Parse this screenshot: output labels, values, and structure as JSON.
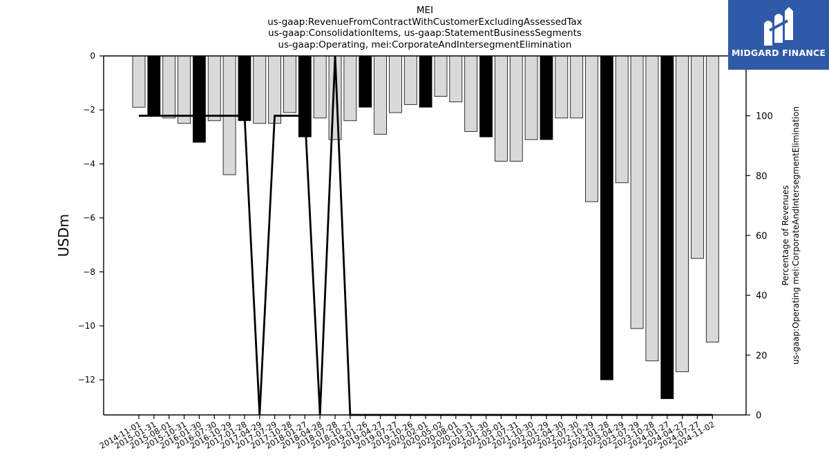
{
  "chart_data": {
    "type": "bar",
    "title_lines": [
      "MEI",
      "us-gaap:RevenueFromContractWithCustomerExcludingAssessedTax",
      "us-gaap:ConsolidationItems, us-gaap:StatementBusinessSegments",
      "us-gaap:Operating, mei:CorporateAndIntersegmentElimination"
    ],
    "ylabel": "USDm",
    "y2label_lines": [
      "Percentage of Revenues",
      "us-gaap:Operating mei:CorporateAndIntersegmentElimination"
    ],
    "ylim": [
      -13.3,
      0
    ],
    "y2lim": [
      0,
      120
    ],
    "yticks": [
      0,
      -2,
      -4,
      -6,
      -8,
      -10,
      -12
    ],
    "y2ticks": [
      0,
      20,
      40,
      60,
      80,
      100
    ],
    "categories": [
      "2014-11-01",
      "2015-01-31",
      "2015-08-01",
      "2015-10-31",
      "2016-01-30",
      "2016-07-30",
      "2016-10-29",
      "2017-01-28",
      "2017-04-29",
      "2017-07-29",
      "2017-10-28",
      "2018-01-27",
      "2018-04-28",
      "2018-07-28",
      "2018-10-27",
      "2019-01-26",
      "2019-04-27",
      "2019-07-27",
      "2019-10-26",
      "2020-02-01",
      "2020-05-02",
      "2020-08-01",
      "2020-10-31",
      "2021-01-30",
      "2021-05-01",
      "2021-07-31",
      "2021-10-30",
      "2022-01-29",
      "2022-04-30",
      "2022-07-30",
      "2022-10-29",
      "2023-01-28",
      "2023-04-29",
      "2023-07-29",
      "2023-10-28",
      "2024-01-27",
      "2024-04-27",
      "2024-07-27",
      "2024-11-02"
    ],
    "series": [
      {
        "values": [
          -1.9,
          -2.2,
          -2.3,
          -2.5,
          -3.2,
          -2.4,
          -4.4,
          -2.4,
          -2.5,
          -2.5,
          -2.1,
          -3.0,
          -2.3,
          -3.1,
          -2.4,
          -1.9,
          -2.9,
          -2.1,
          -1.8,
          -1.9,
          -1.5,
          -1.7,
          -2.8,
          -3.0,
          -3.9,
          -3.9,
          -3.1,
          -3.1,
          -2.3,
          -2.3,
          -5.4,
          -12.0,
          -4.7,
          -10.1,
          -11.3,
          -12.7,
          -11.7,
          -7.5,
          -10.6
        ],
        "highlight": [
          false,
          true,
          false,
          false,
          true,
          false,
          false,
          true,
          false,
          false,
          false,
          true,
          false,
          false,
          false,
          true,
          false,
          false,
          false,
          true,
          false,
          false,
          false,
          true,
          false,
          false,
          false,
          true,
          false,
          false,
          false,
          true,
          false,
          false,
          false,
          true,
          false,
          false,
          false
        ]
      },
      {
        "values": [
          100,
          100,
          100,
          100,
          100,
          100,
          100,
          100,
          0,
          100,
          100,
          100,
          0,
          120,
          0,
          0,
          0,
          0,
          0,
          0,
          0,
          0,
          0,
          0,
          0,
          0,
          0,
          0,
          0,
          0,
          0,
          0,
          0,
          0,
          0,
          0,
          0,
          0,
          0
        ]
      }
    ],
    "colors": {
      "bar": "#d9d9d9",
      "bar_highlight": "#000000",
      "line": "#000000"
    },
    "grid": false
  },
  "logo": {
    "text": "MIDGARD FINANCE",
    "color": "#2f5aa8"
  }
}
